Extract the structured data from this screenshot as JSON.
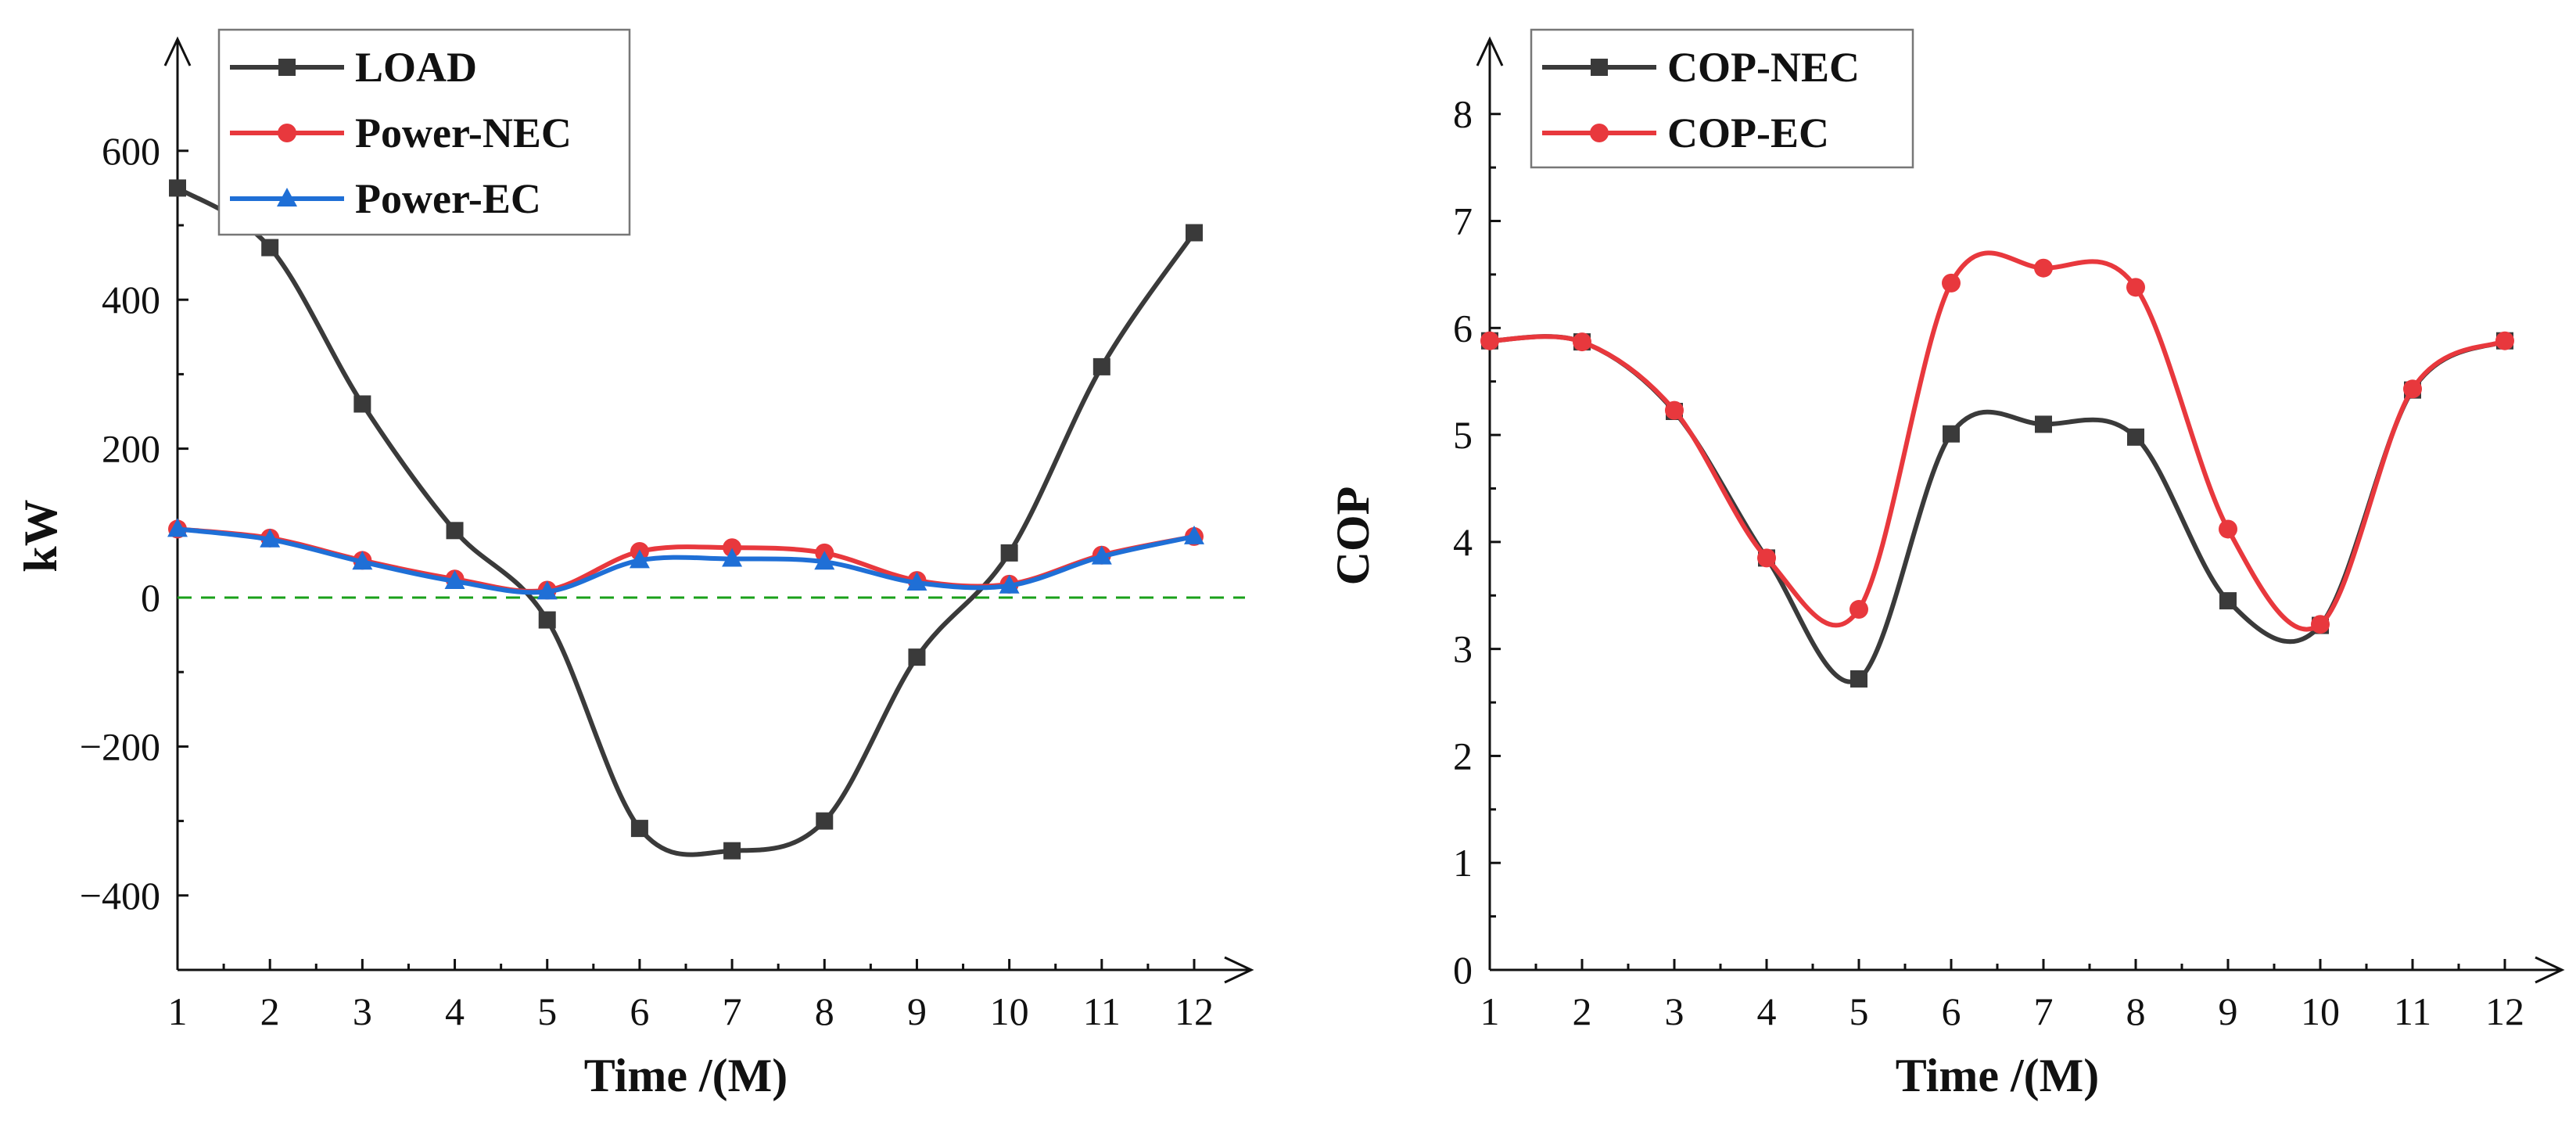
{
  "colors": {
    "load": "#3a3a3a",
    "nec": "#e8383d",
    "ec": "#1f6fd6",
    "zero_line": "#1aa01a"
  },
  "chart_data": [
    {
      "type": "line",
      "smooth": true,
      "title": "",
      "xlabel": "Time /(M)",
      "ylabel": "kW",
      "x": [
        1,
        2,
        3,
        4,
        5,
        6,
        7,
        8,
        9,
        10,
        11,
        12
      ],
      "xlim": [
        1,
        12.5
      ],
      "ylim": [
        -500,
        750
      ],
      "xticks": [
        "1",
        "2",
        "3",
        "4",
        "5",
        "6",
        "7",
        "8",
        "9",
        "10",
        "11",
        "12"
      ],
      "yticks": [
        -400,
        -200,
        0,
        200,
        400,
        600
      ],
      "ytick_labels": [
        "−400",
        "−200",
        "0",
        "200",
        "400",
        "600"
      ],
      "reference_line": {
        "y": 0,
        "style": "dashed",
        "color_key": "zero_line"
      },
      "legend_position": "top-left",
      "series": [
        {
          "name": "LOAD",
          "marker": "square",
          "color_key": "load",
          "values": [
            550,
            470,
            260,
            90,
            -30,
            -310,
            -340,
            -300,
            -80,
            60,
            310,
            490
          ]
        },
        {
          "name": "Power-NEC",
          "marker": "circle",
          "color_key": "nec",
          "values": [
            92,
            80,
            50,
            25,
            10,
            62,
            67,
            60,
            23,
            18,
            57,
            82
          ]
        },
        {
          "name": "Power-EC",
          "marker": "triangle",
          "color_key": "ec",
          "values": [
            92,
            78,
            48,
            22,
            8,
            50,
            52,
            48,
            20,
            16,
            55,
            82
          ]
        }
      ]
    },
    {
      "type": "line",
      "smooth": true,
      "title": "",
      "xlabel": "Time /(M)",
      "ylabel": "COP",
      "x": [
        1,
        2,
        3,
        4,
        5,
        6,
        7,
        8,
        9,
        10,
        11,
        12
      ],
      "xlim": [
        1,
        12.5
      ],
      "ylim": [
        0,
        8.7
      ],
      "xticks": [
        "1",
        "2",
        "3",
        "4",
        "5",
        "6",
        "7",
        "8",
        "9",
        "10",
        "11",
        "12"
      ],
      "yticks": [
        0,
        1,
        2,
        3,
        4,
        5,
        6,
        7,
        8
      ],
      "ytick_labels": [
        "0",
        "1",
        "2",
        "3",
        "4",
        "5",
        "6",
        "7",
        "8"
      ],
      "legend_position": "top-left",
      "series": [
        {
          "name": "COP-NEC",
          "marker": "square",
          "color_key": "load",
          "values": [
            5.88,
            5.87,
            5.22,
            3.85,
            2.72,
            5.01,
            5.1,
            4.98,
            3.45,
            3.22,
            5.42,
            5.88
          ]
        },
        {
          "name": "COP-EC",
          "marker": "circle",
          "color_key": "nec",
          "values": [
            5.88,
            5.87,
            5.23,
            3.85,
            3.37,
            6.42,
            6.56,
            6.38,
            4.12,
            3.23,
            5.43,
            5.88
          ]
        }
      ]
    }
  ]
}
